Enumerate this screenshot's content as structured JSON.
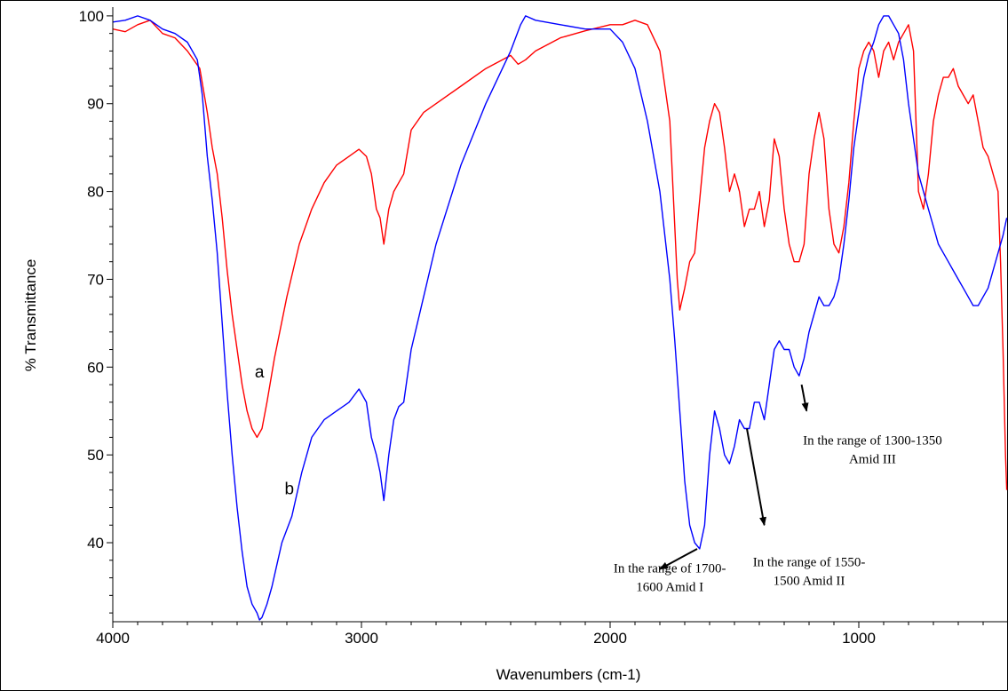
{
  "chart_data": {
    "type": "line",
    "xlabel": "Wavenumbers (cm-1)",
    "ylabel": "% Transmittance",
    "xlim": [
      4000,
      400
    ],
    "ylim": [
      31,
      101
    ],
    "x_reversed": true,
    "x_ticks": [
      4000,
      3000,
      2000,
      1000
    ],
    "y_ticks": [
      40,
      50,
      60,
      70,
      80,
      90,
      100
    ],
    "grid": false,
    "series": [
      {
        "name": "a",
        "color": "#ff0000",
        "points": [
          [
            4000,
            98.5
          ],
          [
            3950,
            98.2
          ],
          [
            3900,
            99
          ],
          [
            3850,
            99.5
          ],
          [
            3800,
            98
          ],
          [
            3750,
            97.5
          ],
          [
            3700,
            96
          ],
          [
            3650,
            94
          ],
          [
            3620,
            89
          ],
          [
            3600,
            85
          ],
          [
            3580,
            82
          ],
          [
            3560,
            77
          ],
          [
            3540,
            71
          ],
          [
            3520,
            66
          ],
          [
            3500,
            62
          ],
          [
            3480,
            58
          ],
          [
            3460,
            55
          ],
          [
            3440,
            53
          ],
          [
            3420,
            52
          ],
          [
            3400,
            53
          ],
          [
            3380,
            56
          ],
          [
            3350,
            61
          ],
          [
            3300,
            68
          ],
          [
            3250,
            74
          ],
          [
            3200,
            78
          ],
          [
            3150,
            81
          ],
          [
            3100,
            83
          ],
          [
            3050,
            84
          ],
          [
            3010,
            84.8
          ],
          [
            2980,
            84
          ],
          [
            2960,
            82
          ],
          [
            2940,
            78
          ],
          [
            2925,
            77
          ],
          [
            2910,
            74
          ],
          [
            2890,
            78
          ],
          [
            2870,
            80
          ],
          [
            2850,
            81
          ],
          [
            2830,
            82
          ],
          [
            2800,
            87
          ],
          [
            2750,
            89
          ],
          [
            2700,
            90
          ],
          [
            2600,
            92
          ],
          [
            2500,
            94
          ],
          [
            2400,
            95.5
          ],
          [
            2370,
            94.5
          ],
          [
            2340,
            95
          ],
          [
            2300,
            96
          ],
          [
            2200,
            97.5
          ],
          [
            2100,
            98.3
          ],
          [
            2000,
            99
          ],
          [
            1950,
            99
          ],
          [
            1900,
            99.5
          ],
          [
            1850,
            99
          ],
          [
            1800,
            96
          ],
          [
            1760,
            88
          ],
          [
            1740,
            76
          ],
          [
            1730,
            70
          ],
          [
            1720,
            66.5
          ],
          [
            1700,
            69
          ],
          [
            1680,
            72
          ],
          [
            1660,
            73
          ],
          [
            1640,
            79
          ],
          [
            1620,
            85
          ],
          [
            1600,
            88
          ],
          [
            1580,
            90
          ],
          [
            1560,
            89
          ],
          [
            1540,
            85
          ],
          [
            1520,
            80
          ],
          [
            1500,
            82
          ],
          [
            1480,
            80
          ],
          [
            1460,
            76
          ],
          [
            1440,
            78
          ],
          [
            1420,
            78
          ],
          [
            1400,
            80
          ],
          [
            1380,
            76
          ],
          [
            1360,
            79
          ],
          [
            1340,
            86
          ],
          [
            1320,
            84
          ],
          [
            1300,
            78
          ],
          [
            1280,
            74
          ],
          [
            1260,
            72
          ],
          [
            1240,
            72
          ],
          [
            1220,
            74
          ],
          [
            1200,
            82
          ],
          [
            1180,
            86
          ],
          [
            1160,
            89
          ],
          [
            1140,
            86
          ],
          [
            1120,
            78
          ],
          [
            1100,
            74
          ],
          [
            1080,
            73
          ],
          [
            1060,
            76
          ],
          [
            1040,
            81
          ],
          [
            1020,
            88
          ],
          [
            1000,
            94
          ],
          [
            980,
            96
          ],
          [
            960,
            97
          ],
          [
            940,
            96
          ],
          [
            920,
            93
          ],
          [
            900,
            96
          ],
          [
            880,
            97
          ],
          [
            860,
            95
          ],
          [
            840,
            97
          ],
          [
            820,
            98
          ],
          [
            800,
            99
          ],
          [
            780,
            96
          ],
          [
            760,
            80
          ],
          [
            740,
            78
          ],
          [
            720,
            82
          ],
          [
            700,
            88
          ],
          [
            680,
            91
          ],
          [
            660,
            93
          ],
          [
            640,
            93
          ],
          [
            620,
            94
          ],
          [
            600,
            92
          ],
          [
            580,
            91
          ],
          [
            560,
            90
          ],
          [
            540,
            91
          ],
          [
            520,
            88
          ],
          [
            500,
            85
          ],
          [
            480,
            84
          ],
          [
            460,
            82
          ],
          [
            440,
            80
          ],
          [
            430,
            72
          ],
          [
            420,
            62
          ],
          [
            410,
            50
          ],
          [
            405,
            46
          ]
        ]
      },
      {
        "name": "b",
        "color": "#0000ff",
        "points": [
          [
            4000,
            99.3
          ],
          [
            3950,
            99.5
          ],
          [
            3900,
            100
          ],
          [
            3850,
            99.5
          ],
          [
            3800,
            98.5
          ],
          [
            3750,
            98
          ],
          [
            3700,
            97
          ],
          [
            3660,
            95
          ],
          [
            3640,
            91
          ],
          [
            3620,
            84
          ],
          [
            3600,
            79
          ],
          [
            3580,
            73
          ],
          [
            3560,
            65
          ],
          [
            3540,
            57
          ],
          [
            3520,
            50
          ],
          [
            3500,
            44
          ],
          [
            3480,
            39
          ],
          [
            3460,
            35
          ],
          [
            3440,
            33
          ],
          [
            3420,
            32
          ],
          [
            3410,
            31.2
          ],
          [
            3400,
            31.5
          ],
          [
            3380,
            33
          ],
          [
            3360,
            35
          ],
          [
            3340,
            37.5
          ],
          [
            3320,
            40
          ],
          [
            3280,
            43
          ],
          [
            3240,
            48
          ],
          [
            3200,
            52
          ],
          [
            3150,
            54
          ],
          [
            3100,
            55
          ],
          [
            3050,
            56
          ],
          [
            3010,
            57.5
          ],
          [
            2980,
            56
          ],
          [
            2960,
            52
          ],
          [
            2940,
            50
          ],
          [
            2925,
            48
          ],
          [
            2910,
            44.8
          ],
          [
            2890,
            50
          ],
          [
            2870,
            54
          ],
          [
            2850,
            55.5
          ],
          [
            2830,
            56
          ],
          [
            2800,
            62
          ],
          [
            2750,
            68
          ],
          [
            2700,
            74
          ],
          [
            2600,
            83
          ],
          [
            2500,
            90
          ],
          [
            2400,
            96
          ],
          [
            2360,
            99
          ],
          [
            2340,
            100
          ],
          [
            2300,
            99.5
          ],
          [
            2200,
            99
          ],
          [
            2100,
            98.5
          ],
          [
            2000,
            98.5
          ],
          [
            1950,
            97
          ],
          [
            1900,
            94
          ],
          [
            1850,
            88
          ],
          [
            1800,
            80
          ],
          [
            1760,
            70
          ],
          [
            1740,
            63
          ],
          [
            1720,
            55
          ],
          [
            1700,
            47
          ],
          [
            1680,
            42
          ],
          [
            1660,
            40
          ],
          [
            1640,
            39.3
          ],
          [
            1620,
            42
          ],
          [
            1600,
            50
          ],
          [
            1580,
            55
          ],
          [
            1560,
            53
          ],
          [
            1540,
            50
          ],
          [
            1520,
            49
          ],
          [
            1500,
            51
          ],
          [
            1480,
            54
          ],
          [
            1460,
            53
          ],
          [
            1440,
            53
          ],
          [
            1420,
            56
          ],
          [
            1400,
            56
          ],
          [
            1380,
            54
          ],
          [
            1360,
            58
          ],
          [
            1340,
            62
          ],
          [
            1320,
            63
          ],
          [
            1300,
            62
          ],
          [
            1280,
            62
          ],
          [
            1260,
            60
          ],
          [
            1240,
            59
          ],
          [
            1220,
            61
          ],
          [
            1200,
            64
          ],
          [
            1180,
            66
          ],
          [
            1160,
            68
          ],
          [
            1140,
            67
          ],
          [
            1120,
            67
          ],
          [
            1100,
            68
          ],
          [
            1080,
            70
          ],
          [
            1060,
            74
          ],
          [
            1040,
            79
          ],
          [
            1020,
            85
          ],
          [
            1000,
            89
          ],
          [
            980,
            93
          ],
          [
            960,
            95.5
          ],
          [
            940,
            97
          ],
          [
            920,
            99
          ],
          [
            900,
            100
          ],
          [
            880,
            100
          ],
          [
            860,
            99
          ],
          [
            840,
            98
          ],
          [
            820,
            95
          ],
          [
            800,
            90
          ],
          [
            780,
            86
          ],
          [
            760,
            82
          ],
          [
            740,
            80
          ],
          [
            720,
            78
          ],
          [
            700,
            76
          ],
          [
            680,
            74
          ],
          [
            660,
            73
          ],
          [
            640,
            72
          ],
          [
            620,
            71
          ],
          [
            600,
            70
          ],
          [
            580,
            69
          ],
          [
            560,
            68
          ],
          [
            540,
            67
          ],
          [
            520,
            67
          ],
          [
            500,
            68
          ],
          [
            480,
            69
          ],
          [
            460,
            71
          ],
          [
            440,
            73
          ],
          [
            420,
            75
          ],
          [
            405,
            77
          ]
        ]
      }
    ],
    "series_labels": [
      {
        "text": "a",
        "x": 3410,
        "y": 58.8
      },
      {
        "text": "b",
        "x": 3290,
        "y": 45.5
      }
    ],
    "annotations": [
      {
        "lines": [
          "In the range of 1700-",
          "1600 Amid I"
        ],
        "text_x": 1760,
        "text_y": 36.6,
        "arrow_from": [
          1650,
          39.3
        ],
        "arrow_to": [
          1800,
          37
        ]
      },
      {
        "lines": [
          "In the range of 1550-",
          "1500 Amid II"
        ],
        "text_x": 1200,
        "text_y": 37.3,
        "arrow_from": [
          1450,
          53
        ],
        "arrow_to": [
          1380,
          42
        ]
      },
      {
        "lines": [
          "In the range of 1300-1350",
          "Amid III"
        ],
        "text_x": 945,
        "text_y": 51.2,
        "arrow_from": [
          1230,
          58
        ],
        "arrow_to": [
          1210,
          55
        ]
      }
    ]
  }
}
